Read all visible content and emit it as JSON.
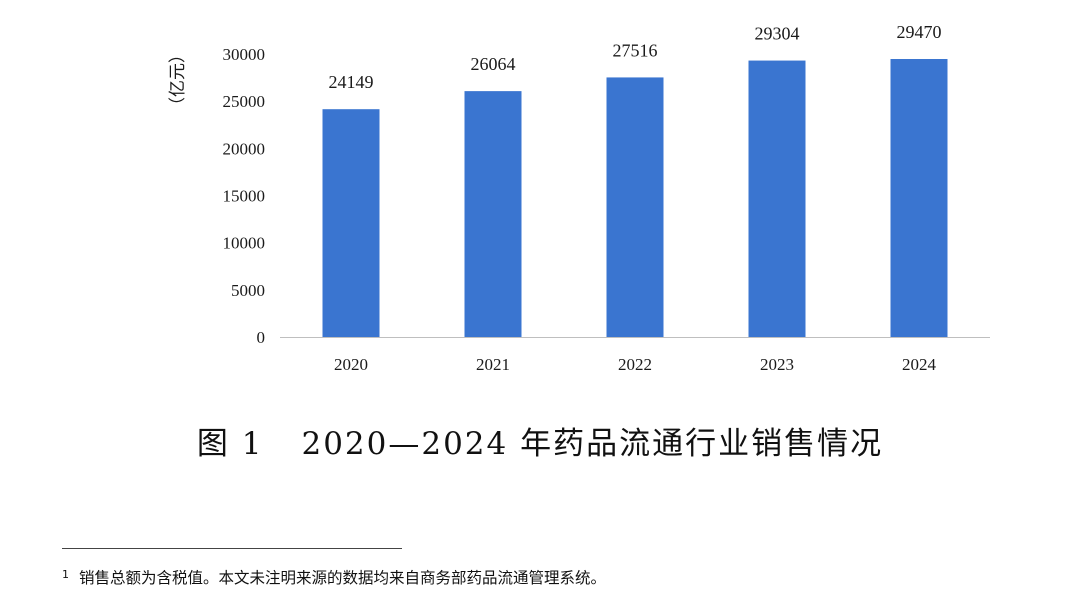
{
  "chart_data": {
    "type": "bar",
    "categories": [
      "2020",
      "2021",
      "2022",
      "2023",
      "2024"
    ],
    "values": [
      24149,
      26064,
      27516,
      29304,
      29470
    ],
    "ylabel": "（亿元）",
    "ylim": [
      0,
      30000
    ],
    "yticks": [
      0,
      5000,
      10000,
      15000,
      20000,
      25000,
      30000
    ],
    "data_labels": [
      "24149",
      "26064",
      "27516",
      "29304",
      "29470"
    ],
    "bar_color": "#3a75d0",
    "grid": false,
    "legend": "none"
  },
  "caption": {
    "figure_number": "图 1",
    "title": "2020—2024 年药品流通行业销售情况"
  },
  "footnote": {
    "marker": "1",
    "text": "销售总额为含税值。本文未注明来源的数据均来自商务部药品流通管理系统。"
  }
}
